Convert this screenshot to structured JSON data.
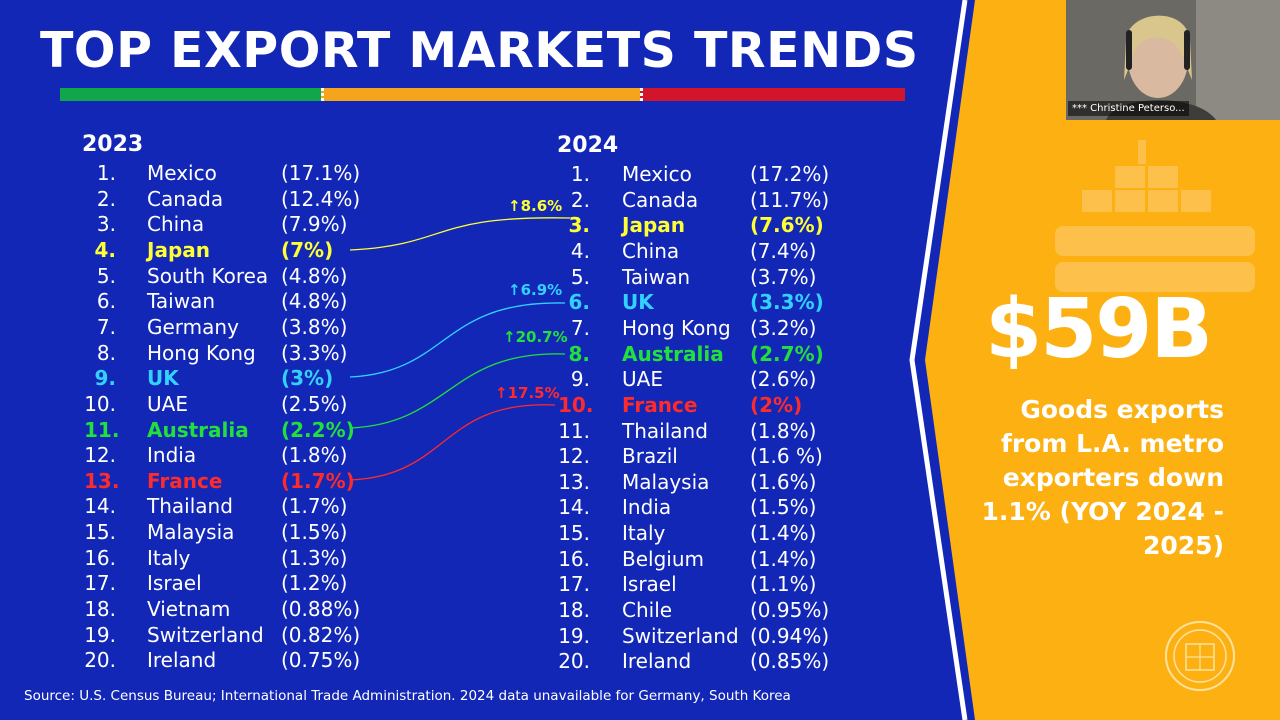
{
  "slide": {
    "title": "TOP EXPORT MARKETS TRENDS",
    "colors": {
      "background": "#1327b6",
      "panel": "#fdb012",
      "green": "#12a64a",
      "orange": "#f4a51c",
      "red": "#d3152b",
      "yellow": "#ffff33",
      "blue": "#33d1ff",
      "lime": "#22e03c",
      "redtext": "#ff2a2a"
    },
    "col2023": {
      "year": "2023",
      "rows": [
        {
          "rank": "1.",
          "country": "Mexico",
          "pct": "(17.1%)"
        },
        {
          "rank": "2.",
          "country": "Canada",
          "pct": "(12.4%)"
        },
        {
          "rank": "3.",
          "country": "China",
          "pct": "(7.9%)"
        },
        {
          "rank": "4.",
          "country": "Japan",
          "pct": "(7%)"
        },
        {
          "rank": "5.",
          "country": "South Korea",
          "pct": "(4.8%)"
        },
        {
          "rank": "6.",
          "country": "Taiwan",
          "pct": "(4.8%)"
        },
        {
          "rank": "7.",
          "country": "Germany",
          "pct": "(3.8%)"
        },
        {
          "rank": "8.",
          "country": "Hong Kong",
          "pct": "(3.3%)"
        },
        {
          "rank": "9.",
          "country": "UK",
          "pct": "(3%)"
        },
        {
          "rank": "10.",
          "country": "UAE",
          "pct": "(2.5%)"
        },
        {
          "rank": "11.",
          "country": "Australia",
          "pct": "(2.2%)"
        },
        {
          "rank": "12.",
          "country": "India",
          "pct": "(1.8%)"
        },
        {
          "rank": "13.",
          "country": "France",
          "pct": "(1.7%)"
        },
        {
          "rank": "14.",
          "country": "Thailand",
          "pct": "(1.7%)"
        },
        {
          "rank": "15.",
          "country": "Malaysia",
          "pct": "(1.5%)"
        },
        {
          "rank": "16.",
          "country": "Italy",
          "pct": "(1.3%)"
        },
        {
          "rank": "17.",
          "country": "Israel",
          "pct": "(1.2%)"
        },
        {
          "rank": "18.",
          "country": "Vietnam",
          "pct": "(0.88%)"
        },
        {
          "rank": "19.",
          "country": "Switzerland",
          "pct": "(0.82%)"
        },
        {
          "rank": "20.",
          "country": "Ireland",
          "pct": "(0.75%)"
        }
      ]
    },
    "col2024": {
      "year": "2024",
      "rows": [
        {
          "rank": "1.",
          "country": "Mexico",
          "pct": "(17.2%)"
        },
        {
          "rank": "2.",
          "country": "Canada",
          "pct": "(11.7%)"
        },
        {
          "rank": "3.",
          "country": "Japan",
          "pct": "(7.6%)"
        },
        {
          "rank": "4.",
          "country": "China",
          "pct": "(7.4%)"
        },
        {
          "rank": "5.",
          "country": "Taiwan",
          "pct": "(3.7%)"
        },
        {
          "rank": "6.",
          "country": "UK",
          "pct": "(3.3%)"
        },
        {
          "rank": "7.",
          "country": "Hong Kong",
          "pct": "(3.2%)"
        },
        {
          "rank": "8.",
          "country": "Australia",
          "pct": "(2.7%)"
        },
        {
          "rank": "9.",
          "country": "UAE",
          "pct": "(2.6%)"
        },
        {
          "rank": "10.",
          "country": "France",
          "pct": "(2%)"
        },
        {
          "rank": "11.",
          "country": "Thailand",
          "pct": "(1.8%)"
        },
        {
          "rank": "12.",
          "country": "Brazil",
          "pct": "(1.6 %)"
        },
        {
          "rank": "13.",
          "country": "Malaysia",
          "pct": "(1.6%)"
        },
        {
          "rank": "14.",
          "country": "India",
          "pct": "(1.5%)"
        },
        {
          "rank": "15.",
          "country": "Italy",
          "pct": "(1.4%)"
        },
        {
          "rank": "16.",
          "country": "Belgium",
          "pct": "(1.4%)"
        },
        {
          "rank": "17.",
          "country": "Israel",
          "pct": "(1.1%)"
        },
        {
          "rank": "18.",
          "country": "Chile",
          "pct": "(0.95%)"
        },
        {
          "rank": "19.",
          "country": "Switzerland",
          "pct": "(0.94%)"
        },
        {
          "rank": "20.",
          "country": "Ireland",
          "pct": "(0.85%)"
        }
      ]
    },
    "highlights": [
      {
        "country": "Japan",
        "color": "#ffff33",
        "change": "↑8.6%"
      },
      {
        "country": "UK",
        "color": "#33d1ff",
        "change": "↑6.9%"
      },
      {
        "country": "Australia",
        "color": "#22e03c",
        "change": "↑20.7%"
      },
      {
        "country": "France",
        "color": "#ff2a2a",
        "change": "↑17.5%"
      }
    ],
    "stat": {
      "value": "$59B",
      "caption": "Goods exports from L.A. metro exporters down 1.1% (YOY 2024 - 2025)"
    },
    "source": "Source: U.S. Census Bureau; International Trade Administration. 2024 data unavailable for Germany, South Korea"
  },
  "video": {
    "participant_name": "*** Christine Peterso..."
  }
}
